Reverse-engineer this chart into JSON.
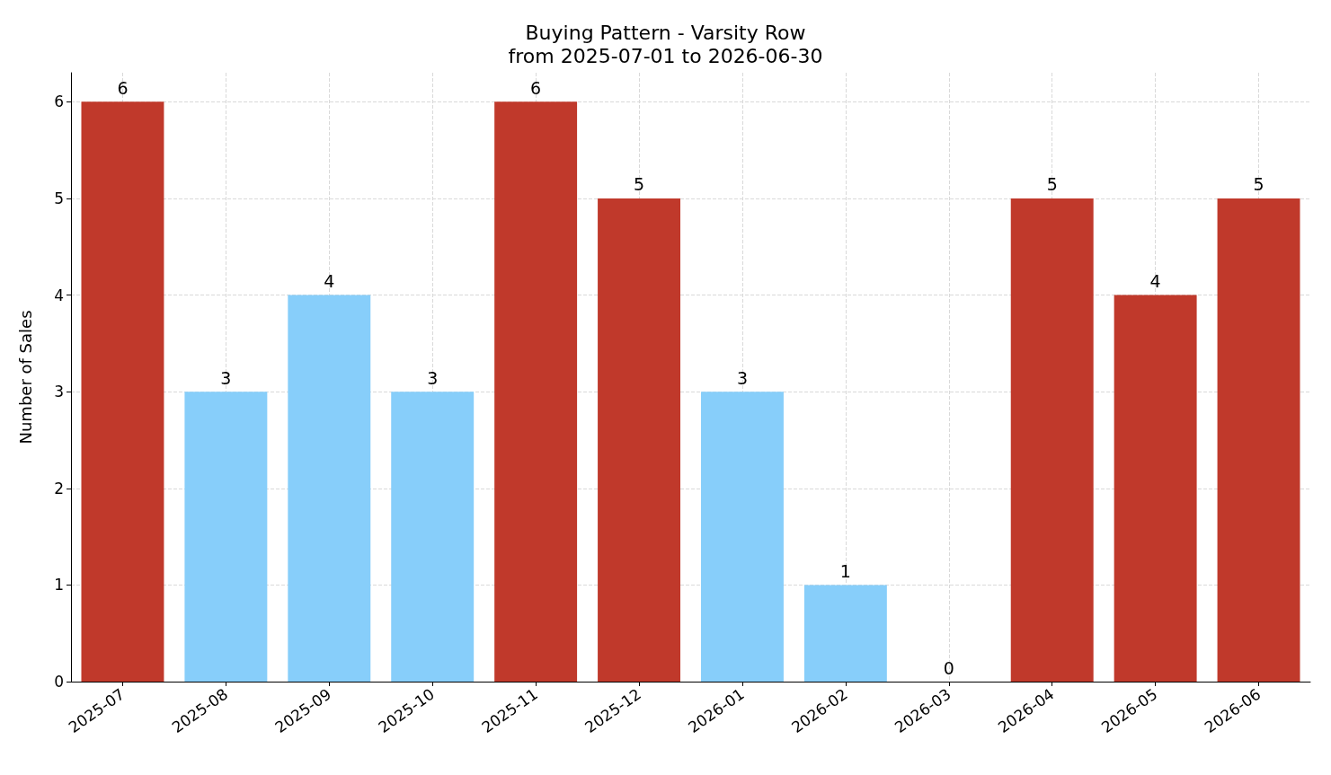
{
  "chart_data": {
    "type": "bar",
    "title": "Buying Pattern - Varsity Row",
    "subtitle": "from 2025-07-01 to 2026-06-30",
    "ylabel": "Number of Sales",
    "categories": [
      "2025-07",
      "2025-08",
      "2025-09",
      "2025-10",
      "2025-11",
      "2025-12",
      "2026-01",
      "2026-02",
      "2026-03",
      "2026-04",
      "2026-05",
      "2026-06"
    ],
    "values": [
      6,
      3,
      4,
      3,
      6,
      5,
      3,
      1,
      0,
      5,
      4,
      5
    ],
    "colors": [
      "#c0392b",
      "#87cefa",
      "#87cefa",
      "#87cefa",
      "#c0392b",
      "#c0392b",
      "#87cefa",
      "#87cefa",
      "#87cefa",
      "#c0392b",
      "#c0392b",
      "#c0392b"
    ],
    "ylim": [
      0,
      6.3
    ],
    "yticks": [
      0,
      1,
      2,
      3,
      4,
      5,
      6
    ],
    "grid": true,
    "data_labels": true
  }
}
